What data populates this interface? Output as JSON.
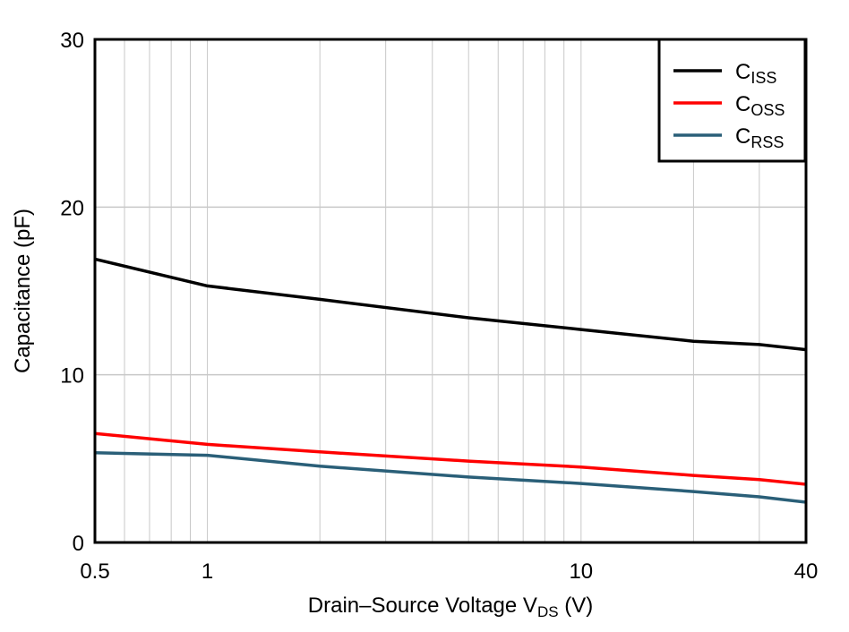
{
  "chart_data": {
    "type": "line",
    "title": "",
    "xlabel": "Drain–Source Voltage V",
    "xlabel_sub": "DS",
    "xlabel_unit": " (V)",
    "ylabel": "Capacitance (pF)",
    "xscale": "log",
    "xlim": [
      0.5,
      40
    ],
    "ylim": [
      0,
      30
    ],
    "xticks": [
      0.5,
      1,
      10,
      40
    ],
    "xtick_labels": [
      "0.5",
      "1",
      "10",
      "40"
    ],
    "yticks": [
      0,
      10,
      20,
      30
    ],
    "ytick_labels": [
      "0",
      "10",
      "20",
      "30"
    ],
    "grid": true,
    "legend_position": "top-right",
    "x": [
      0.5,
      1,
      2,
      5,
      10,
      20,
      30,
      40
    ],
    "series": [
      {
        "name": "C",
        "sub": "ISS",
        "color": "#000000",
        "values": [
          16.9,
          15.3,
          14.5,
          13.4,
          12.7,
          12.0,
          11.8,
          11.5
        ]
      },
      {
        "name": "C",
        "sub": "OSS",
        "color": "#ff0000",
        "values": [
          6.5,
          5.85,
          5.4,
          4.85,
          4.5,
          4.0,
          3.75,
          3.47
        ]
      },
      {
        "name": "C",
        "sub": "RSS",
        "color": "#2a5f78",
        "values": [
          5.35,
          5.2,
          4.55,
          3.9,
          3.52,
          3.04,
          2.72,
          2.4
        ]
      }
    ]
  }
}
